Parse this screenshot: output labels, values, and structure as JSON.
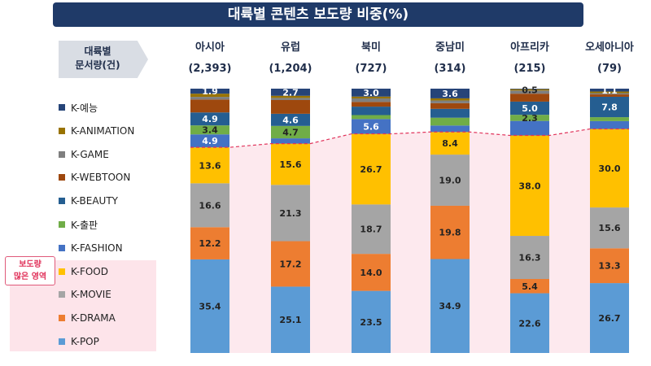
{
  "title": "대륙별 콘텐츠 보도량 비중(%)",
  "row_label": [
    "대륙별",
    "문서량(건)"
  ],
  "highlight_note": [
    "보도량",
    "많은 영역"
  ],
  "chart_data": {
    "type": "bar",
    "stacked": true,
    "percent": true,
    "categories": [
      "아시아",
      "유럽",
      "북미",
      "중남미",
      "아프리카",
      "오세아니아"
    ],
    "category_counts": [
      "(2,393)",
      "(1,204)",
      "(727)",
      "(314)",
      "(215)",
      "(79)"
    ],
    "legend_placement": "left",
    "series": [
      {
        "name": "K-POP",
        "color": "#5b9bd5",
        "values": [
          35.4,
          25.1,
          23.5,
          34.9,
          22.6,
          26.7
        ],
        "labels": [
          "35.4",
          "25.1",
          "23.5",
          "34.9",
          "22.6",
          "26.7"
        ]
      },
      {
        "name": "K-DRAMA",
        "color": "#ed7d31",
        "values": [
          12.2,
          17.2,
          14.0,
          19.8,
          5.4,
          13.3
        ],
        "labels": [
          "12.2",
          "17.2",
          "14.0",
          "19.8",
          "5.4",
          "13.3"
        ]
      },
      {
        "name": "K-MOVIE",
        "color": "#a5a5a5",
        "values": [
          16.6,
          21.3,
          18.7,
          19.0,
          16.3,
          15.6
        ],
        "labels": [
          "16.6",
          "21.3",
          "18.7",
          "19.0",
          "16.3",
          "15.6"
        ]
      },
      {
        "name": "K-FOOD",
        "color": "#ffc000",
        "values": [
          13.6,
          15.6,
          26.7,
          8.4,
          38.0,
          30.0
        ],
        "labels": [
          "13.6",
          "15.6",
          "26.7",
          "8.4",
          "38.0",
          "30.0"
        ]
      },
      {
        "name": "K-FASHION",
        "color": "#4472c4",
        "values": [
          4.9,
          2.0,
          5.6,
          2.4,
          5.5,
          3.0
        ],
        "labels": [
          "4.9",
          "",
          "5.6",
          "",
          "",
          ""
        ]
      },
      {
        "name": "K-출판",
        "color": "#70ad47",
        "values": [
          3.4,
          4.7,
          1.5,
          2.9,
          2.3,
          1.5
        ],
        "labels": [
          "3.4",
          "4.7",
          "",
          "",
          "2.3",
          ""
        ]
      },
      {
        "name": "K-BEAUTY",
        "color": "#255e91",
        "values": [
          4.9,
          4.6,
          3.2,
          3.3,
          5.0,
          7.8
        ],
        "labels": [
          "4.9",
          "4.6",
          "",
          "",
          "5.0",
          "7.8"
        ]
      },
      {
        "name": "K-WEBTOON",
        "color": "#9e480e",
        "values": [
          4.9,
          5.2,
          1.8,
          2.1,
          3.0,
          0.9
        ],
        "labels": [
          "",
          "",
          "",
          "",
          "",
          ""
        ]
      },
      {
        "name": "K-GAME",
        "color": "#7f7f7f",
        "values": [
          1.0,
          0.8,
          1.3,
          1.0,
          1.2,
          0.5
        ],
        "labels": [
          "",
          "",
          "",
          "",
          "",
          ""
        ]
      },
      {
        "name": "K-ANIMATION",
        "color": "#997300",
        "values": [
          1.2,
          0.8,
          0.7,
          0.8,
          0.5,
          0.6
        ],
        "labels": [
          "",
          "",
          "",
          "",
          "0.5",
          ""
        ]
      },
      {
        "name": "K-예능",
        "color": "#264478",
        "values": [
          1.9,
          2.7,
          3.0,
          3.6,
          0.2,
          1.1
        ],
        "labels": [
          "1.9",
          "2.7",
          "3.0",
          "3.6",
          "",
          "1.1"
        ]
      }
    ]
  }
}
